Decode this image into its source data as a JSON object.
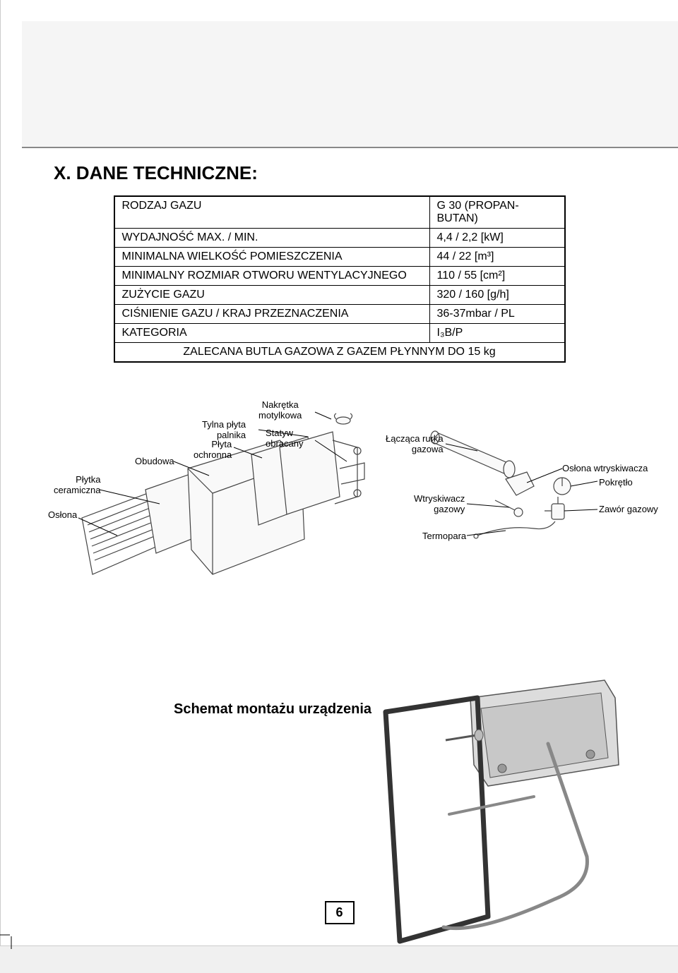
{
  "title": "X. DANE TECHNICZNE:",
  "table": {
    "rows": [
      {
        "label": "RODZAJ GAZU",
        "value": "G 30 (PROPAN-BUTAN)"
      },
      {
        "label": "WYDAJNOŚĆ MAX. / MIN.",
        "value": "4,4 / 2,2 [kW]"
      },
      {
        "label": "MINIMALNA WIELKOŚĆ POMIESZCZENIA",
        "value": "44 / 22 [m³]"
      },
      {
        "label": "MINIMALNY ROZMIAR OTWORU WENTYLACYJNEGO",
        "value": "110 / 55 [cm²]"
      },
      {
        "label": "ZUŻYCIE GAZU",
        "value": "320 / 160 [g/h]"
      },
      {
        "label": "CIŚNIENIE GAZU / KRAJ PRZEZNACZENIA",
        "value": "36-37mbar / PL"
      },
      {
        "label": "KATEGORIA",
        "value": "I₃B/P"
      }
    ],
    "footer": "ZALECANA BUTLA GAZOWA Z GAZEM PŁYNNYM DO 15 kg"
  },
  "diagram_labels": {
    "nakretka": "Nakrętka\nmotylkowa",
    "tylna_plyta": "Tylna płyta\npalnika",
    "statyw": "Statyw\nobracany",
    "plyta_ochronna": "Płyta\nochronna",
    "obudowa": "Obudowa",
    "plytka_ceramiczna": "Płytka\nceramiczna",
    "oslona": "Osłona",
    "laczaca_rurka": "Łącząca rurka\ngazowa",
    "oslona_wtrysk": "Osłona wtryskiwacza",
    "pokretlo": "Pokrętło",
    "wtryskiwacz": "Wtryskiwacz\ngazowy",
    "zawor": "Zawór gazowy",
    "termopara": "Termopara"
  },
  "assembly_title": "Schemat montażu urządzenia",
  "page_number": "6",
  "colors": {
    "bg": "#ffffff",
    "header": "#f5f5f5",
    "line": "#000000",
    "part_fill": "#f9f9f9",
    "part_stroke": "#555555",
    "frame_dark": "#333333"
  }
}
